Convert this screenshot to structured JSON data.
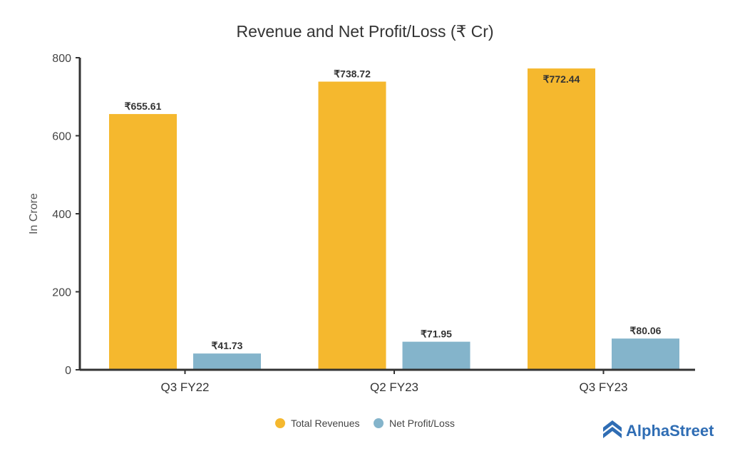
{
  "chart_data": {
    "type": "bar",
    "title": "Revenue and Net Profit/Loss (₹ Cr)",
    "xlabel": "",
    "ylabel": "In Crore",
    "ylim": [
      0,
      800
    ],
    "yticks": [
      0,
      200,
      400,
      600,
      800
    ],
    "ytick_labels": [
      "0",
      "200",
      "400",
      "600",
      "800"
    ],
    "categories": [
      "Q3 FY22",
      "Q2 FY23",
      "Q3 FY23"
    ],
    "series": [
      {
        "name": "Total Revenues",
        "color": "#f5b82e",
        "values": [
          655.61,
          738.72,
          772.44
        ],
        "labels": [
          "₹655.61",
          "₹738.72",
          "₹772.44"
        ]
      },
      {
        "name": "Net Profit/Loss",
        "color": "#84b4cb",
        "values": [
          41.73,
          71.95,
          80.06
        ],
        "labels": [
          "₹41.73",
          "₹71.95",
          "₹80.06"
        ]
      }
    ],
    "legend_position": "bottom-center",
    "grid": false
  },
  "brand": {
    "name": "AlphaStreet",
    "color": "#2f6db4",
    "icon": "alphastreet-logo-icon"
  },
  "colors": {
    "axis": "#333333",
    "text": "#333333"
  }
}
